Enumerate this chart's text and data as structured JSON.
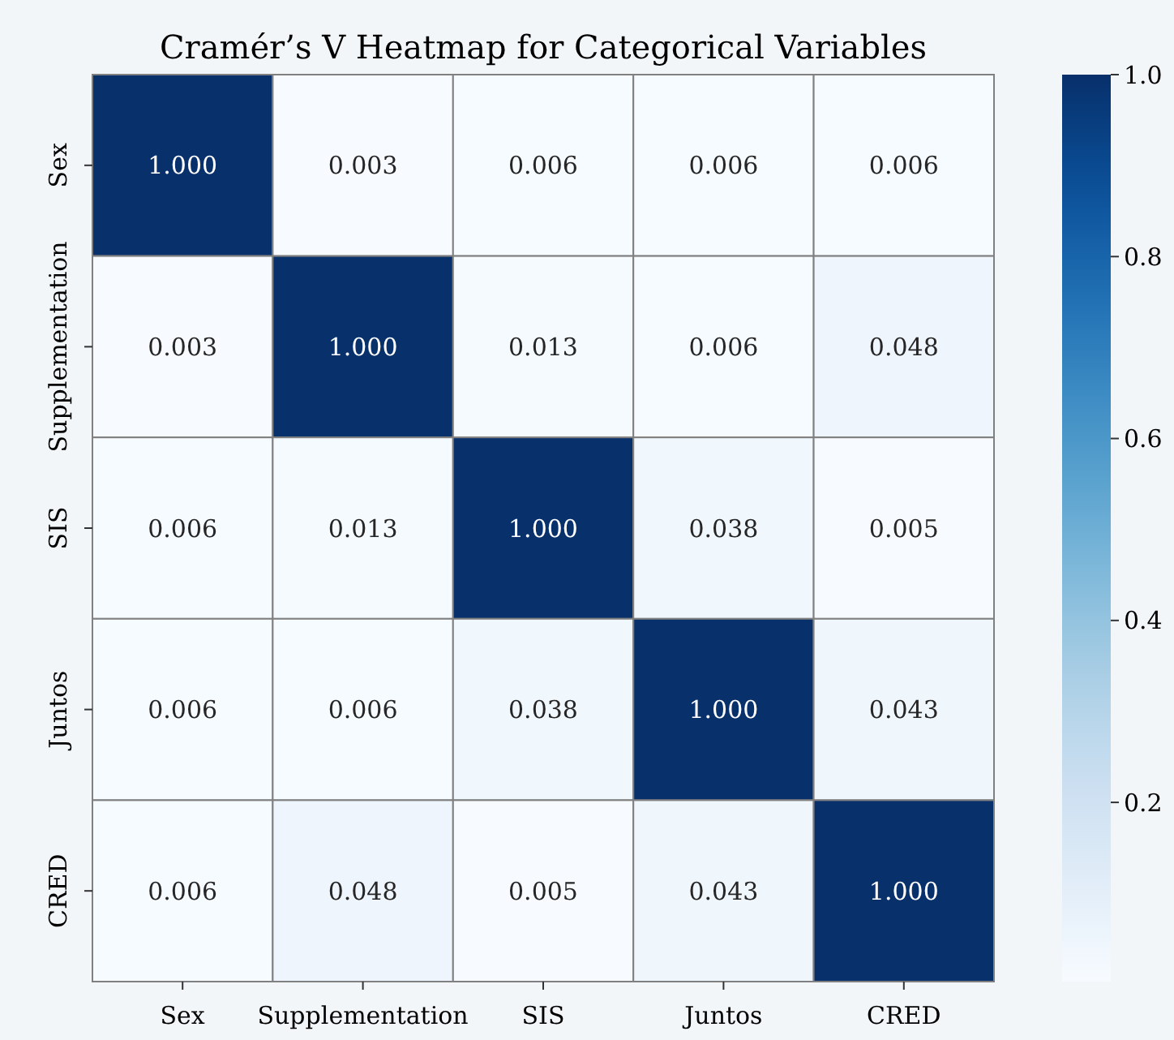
{
  "chart_data": {
    "type": "heatmap",
    "title": "Cramér’s V Heatmap for Categorical Variables",
    "categories": [
      "Sex",
      "Supplementation",
      "SIS",
      "Juntos",
      "CRED"
    ],
    "y_categories": [
      "Sex",
      "Supplementation",
      "SIS",
      "Juntos",
      "CRED"
    ],
    "cells": [
      [
        1.0,
        0.003,
        0.006,
        0.006,
        0.006
      ],
      [
        0.003,
        1.0,
        0.013,
        0.006,
        0.048
      ],
      [
        0.006,
        0.013,
        1.0,
        0.038,
        0.005
      ],
      [
        0.006,
        0.006,
        0.038,
        1.0,
        0.043
      ],
      [
        0.006,
        0.048,
        0.005,
        0.043,
        1.0
      ]
    ],
    "cell_labels": [
      [
        "1.000",
        "0.003",
        "0.006",
        "0.006",
        "0.006"
      ],
      [
        "0.003",
        "1.000",
        "0.013",
        "0.006",
        "0.048"
      ],
      [
        "0.006",
        "0.013",
        "1.000",
        "0.038",
        "0.005"
      ],
      [
        "0.006",
        "0.006",
        "0.038",
        "1.000",
        "0.043"
      ],
      [
        "0.006",
        "0.048",
        "0.005",
        "0.043",
        "1.000"
      ]
    ],
    "clim": [
      0.003,
      1.0
    ],
    "cticks": [
      {
        "value": 0.2,
        "label": "0.2"
      },
      {
        "value": 0.4,
        "label": "0.4"
      },
      {
        "value": 0.6,
        "label": "0.6"
      },
      {
        "value": 0.8,
        "label": "0.8"
      },
      {
        "value": 1.0,
        "label": "1.0"
      }
    ]
  }
}
